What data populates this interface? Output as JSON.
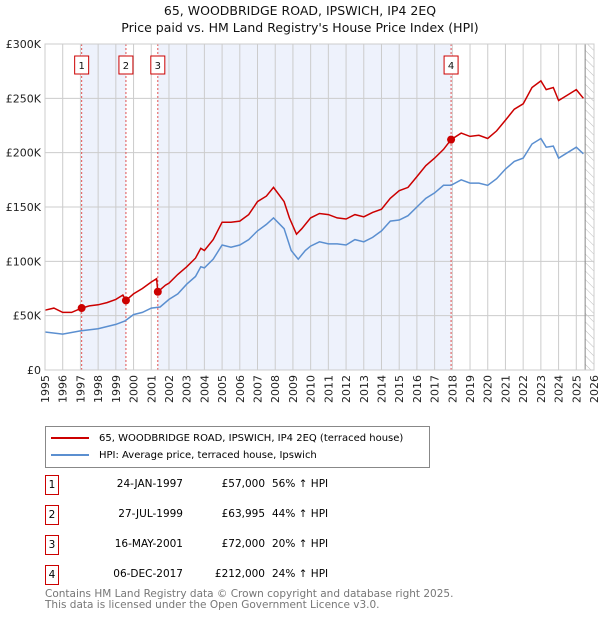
{
  "chart_data": {
    "type": "line",
    "title": "65, WOODBRIDGE ROAD, IPSWICH, IP4 2EQ",
    "subtitle": "Price paid vs. HM Land Registry's House Price Index (HPI)",
    "xlim": [
      1995,
      2026
    ],
    "ylim": [
      0,
      300000
    ],
    "x_ticks": [
      "1995",
      "1996",
      "1997",
      "1998",
      "1999",
      "2000",
      "2001",
      "2002",
      "2003",
      "2004",
      "2005",
      "2006",
      "2007",
      "2008",
      "2009",
      "2010",
      "2011",
      "2012",
      "2013",
      "2014",
      "2015",
      "2016",
      "2017",
      "2018",
      "2019",
      "2020",
      "2021",
      "2022",
      "2023",
      "2024",
      "2025",
      "2026"
    ],
    "y_ticks": [
      {
        "v": 0,
        "label": "£0"
      },
      {
        "v": 50000,
        "label": "£50K"
      },
      {
        "v": 100000,
        "label": "£100K"
      },
      {
        "v": 150000,
        "label": "£150K"
      },
      {
        "v": 200000,
        "label": "£200K"
      },
      {
        "v": 250000,
        "label": "£250K"
      },
      {
        "v": 300000,
        "label": "£300K"
      }
    ],
    "grid": true,
    "series": [
      {
        "name": "65, WOODBRIDGE ROAD, IPSWICH, IP4 2EQ (terraced house)",
        "color": "#cc0000",
        "x": [
          1995,
          1995.5,
          1996,
          1996.5,
          1997.07,
          1997.5,
          1998,
          1998.5,
          1999,
          1999.4,
          1999.57,
          2000,
          2000.5,
          2001,
          2001.3,
          2001.37,
          2001.8,
          2002,
          2002.5,
          2003,
          2003.5,
          2003.8,
          2004,
          2004.5,
          2005,
          2005.5,
          2006,
          2006.5,
          2007,
          2007.5,
          2007.9,
          2008.5,
          2008.8,
          2009.2,
          2009.5,
          2010,
          2010.5,
          2011,
          2011.5,
          2012,
          2012.5,
          2013,
          2013.5,
          2014,
          2014.5,
          2015,
          2015.5,
          2016,
          2016.5,
          2017,
          2017.5,
          2017.93,
          2018.5,
          2019,
          2019.5,
          2020,
          2020.5,
          2021,
          2021.5,
          2022,
          2022.5,
          2023,
          2023.3,
          2023.7,
          2024,
          2024.5,
          2025,
          2025.4
        ],
        "y": [
          55000,
          57000,
          53000,
          53000,
          57000,
          59000,
          60000,
          62000,
          65000,
          69000,
          64000,
          70000,
          75000,
          81000,
          84000,
          72000,
          78000,
          80000,
          88000,
          95000,
          103000,
          112000,
          110000,
          120000,
          136000,
          136000,
          137000,
          143000,
          155000,
          160000,
          168000,
          155000,
          140000,
          125000,
          130000,
          140000,
          144000,
          143000,
          140000,
          139000,
          143000,
          141000,
          145000,
          148000,
          158000,
          165000,
          168000,
          178000,
          188000,
          195000,
          203000,
          212000,
          218000,
          215000,
          216000,
          213000,
          220000,
          230000,
          240000,
          245000,
          260000,
          266000,
          258000,
          260000,
          248000,
          253000,
          258000,
          250000
        ]
      },
      {
        "name": "HPI: Average price, terraced house, Ipswich",
        "color": "#5b8fd0",
        "x": [
          1995,
          1996,
          1997,
          1998,
          1999,
          1999.5,
          2000,
          2000.5,
          2001,
          2001.5,
          2002,
          2002.5,
          2003,
          2003.5,
          2003.8,
          2004,
          2004.5,
          2005,
          2005.5,
          2006,
          2006.5,
          2007,
          2007.5,
          2007.9,
          2008.5,
          2008.9,
          2009.3,
          2009.7,
          2010,
          2010.5,
          2011,
          2011.5,
          2012,
          2012.5,
          2013,
          2013.5,
          2014,
          2014.5,
          2015,
          2015.5,
          2016,
          2016.5,
          2017,
          2017.5,
          2017.93,
          2018.5,
          2019,
          2019.5,
          2020,
          2020.5,
          2021,
          2021.5,
          2022,
          2022.5,
          2023,
          2023.3,
          2023.7,
          2024,
          2024.5,
          2025,
          2025.4
        ],
        "y": [
          35000,
          33000,
          36000,
          38000,
          42000,
          45000,
          51000,
          53000,
          57000,
          58000,
          65000,
          70000,
          79000,
          86000,
          95000,
          94000,
          102000,
          115000,
          113000,
          115000,
          120000,
          128000,
          134000,
          140000,
          130000,
          110000,
          102000,
          110000,
          114000,
          118000,
          116000,
          116000,
          115000,
          120000,
          118000,
          122000,
          128000,
          137000,
          138000,
          142000,
          150000,
          158000,
          163000,
          170000,
          170000,
          175000,
          172000,
          172000,
          170000,
          176000,
          185000,
          192000,
          195000,
          208000,
          213000,
          205000,
          206000,
          195000,
          200000,
          205000,
          199000
        ]
      }
    ],
    "sales": [
      {
        "num": "1",
        "x": 1997.07,
        "y": 57000,
        "date": "24-JAN-1997",
        "price": "£57,000",
        "hpi": "56% ↑ HPI"
      },
      {
        "num": "2",
        "x": 1999.57,
        "y": 63995,
        "date": "27-JUL-1999",
        "price": "£63,995",
        "hpi": "44% ↑ HPI"
      },
      {
        "num": "3",
        "x": 2001.37,
        "y": 72000,
        "date": "16-MAY-2001",
        "price": "£72,000",
        "hpi": "20% ↑ HPI"
      },
      {
        "num": "4",
        "x": 2017.93,
        "y": 212000,
        "date": "06-DEC-2017",
        "price": "£212,000",
        "hpi": "24% ↑ HPI"
      }
    ],
    "shaded_ranges": [
      [
        1997.07,
        1999.57
      ],
      [
        2001.37,
        2017.93
      ]
    ],
    "hatched_from": 2025.5
  },
  "legend": {
    "property": "65, WOODBRIDGE ROAD, IPSWICH, IP4 2EQ (terraced house)",
    "hpi": "HPI: Average price, terraced house, Ipswich"
  },
  "footer": {
    "line1": "Contains HM Land Registry data © Crown copyright and database right 2025.",
    "line2": "This data is licensed under the Open Government Licence v3.0."
  }
}
